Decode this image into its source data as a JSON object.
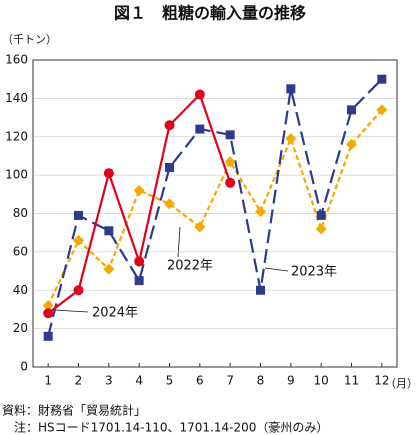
{
  "chart_data": {
    "type": "line",
    "title": "図１　粗糖の輸入量の推移",
    "y_unit": "（千トン）",
    "x_unit": "（月）",
    "categories": [
      1,
      2,
      3,
      4,
      5,
      6,
      7,
      8,
      9,
      10,
      11,
      12
    ],
    "series": [
      {
        "name": "2022年",
        "color": "#f5a800",
        "line_style": "dashed",
        "marker": "diamond",
        "values": [
          32,
          66,
          51,
          92,
          85,
          73,
          107,
          81,
          119,
          72,
          116,
          134
        ]
      },
      {
        "name": "2023年",
        "color": "#2e3a8c",
        "line_style": "long-dashed",
        "marker": "square",
        "values": [
          16,
          79,
          71,
          45,
          104,
          124,
          121,
          40,
          145,
          79,
          134,
          150
        ]
      },
      {
        "name": "2024年",
        "color": "#e3001b",
        "line_style": "solid",
        "marker": "circle",
        "values": [
          28,
          40,
          101,
          55,
          126,
          142,
          96,
          null,
          null,
          null,
          null,
          null
        ]
      }
    ],
    "ylim": [
      0,
      160
    ],
    "yticks": [
      0,
      20,
      40,
      60,
      80,
      100,
      120,
      140,
      160
    ],
    "grid": true,
    "source": "資料：財務省「貿易統計」",
    "note": "注：HSコード1701.14-110、1701.14-200（豪州のみ）"
  }
}
